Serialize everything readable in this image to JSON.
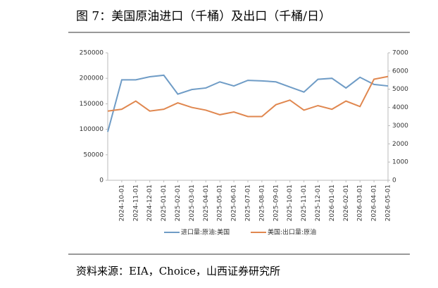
{
  "chart_data": {
    "type": "line",
    "title": "图 7：美国原油进口（千桶）及出口（千桶/日）",
    "source": "资料来源：EIA，Choice，山西证券研究所",
    "x": [
      null,
      "2024-10-01",
      "2024-11-01",
      "2024-12-01",
      "2025-01-01",
      "2025-02-01",
      "2025-03-01",
      "2025-04-01",
      "2025-05-01",
      "2025-06-01",
      "2025-07-01",
      "2025-08-01",
      "2025-09-01",
      "2025-10-01",
      "2025-11-01",
      "2025-12-01",
      "2026-01-01",
      "2026-02-01",
      "2026-03-01",
      "2026-04-01",
      "2026-05-01"
    ],
    "series": [
      {
        "name": "进口量:原油:美国",
        "color": "#6f9cc6",
        "values": [
          95000,
          197000,
          197000,
          203000,
          206000,
          169000,
          178000,
          181000,
          193000,
          185000,
          196000,
          195000,
          193000,
          183000,
          173000,
          198000,
          200000,
          181000,
          202000,
          188000,
          185000
        ]
      },
      {
        "name": "美国:出口量:原油",
        "color": "#e0874f",
        "axis": "y2",
        "values": [
          3800,
          3900,
          4350,
          3800,
          3900,
          4250,
          4000,
          3850,
          3600,
          3750,
          3500,
          3500,
          4150,
          4400,
          3850,
          4100,
          3900,
          4350,
          4050,
          5550,
          5700
        ]
      }
    ],
    "ylim": [
      0,
      250000
    ],
    "yticks": [
      0,
      50000,
      100000,
      150000,
      200000,
      250000
    ],
    "y2lim": [
      0,
      7000
    ],
    "y2ticks": [
      0,
      1000,
      2000,
      3000,
      4000,
      5000,
      6000,
      7000
    ],
    "legend": "bottom"
  }
}
